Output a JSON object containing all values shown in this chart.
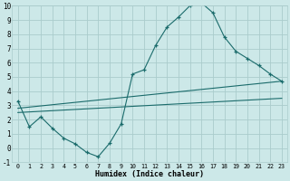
{
  "xlabel": "Humidex (Indice chaleur)",
  "xlim": [
    -0.5,
    23.5
  ],
  "ylim": [
    -1,
    10
  ],
  "bg_color": "#cce8e8",
  "grid_color": "#aacccc",
  "line_color": "#1a6b6b",
  "line1_x": [
    0,
    1,
    2,
    3,
    4,
    5,
    6,
    7,
    8,
    9,
    10,
    11,
    12,
    13,
    14,
    15,
    16,
    17,
    18,
    19,
    20,
    21,
    22,
    23
  ],
  "line1_y": [
    3.3,
    1.5,
    2.2,
    1.4,
    0.7,
    0.3,
    -0.3,
    -0.6,
    0.35,
    1.7,
    5.2,
    5.5,
    7.2,
    8.5,
    9.2,
    10.0,
    10.2,
    9.5,
    7.8,
    6.8,
    6.3,
    5.8,
    5.2,
    4.7
  ],
  "line2_x": [
    0,
    23
  ],
  "line2_y": [
    2.8,
    4.7
  ],
  "line3_x": [
    0,
    23
  ],
  "line3_y": [
    2.5,
    3.5
  ],
  "yticks": [
    -1,
    0,
    1,
    2,
    3,
    4,
    5,
    6,
    7,
    8,
    9,
    10
  ],
  "xticks": [
    0,
    1,
    2,
    3,
    4,
    5,
    6,
    7,
    8,
    9,
    10,
    11,
    12,
    13,
    14,
    15,
    16,
    17,
    18,
    19,
    20,
    21,
    22,
    23
  ]
}
